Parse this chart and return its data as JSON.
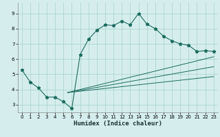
{
  "xlabel": "Humidex (Indice chaleur)",
  "background_color": "#d5eeed",
  "line_color": "#1a6b5e",
  "grid_color": "#b2d8d4",
  "xlim": [
    -0.5,
    23.5
  ],
  "ylim": [
    2.5,
    9.7
  ],
  "xticks": [
    0,
    1,
    2,
    3,
    4,
    5,
    6,
    7,
    8,
    9,
    10,
    11,
    12,
    13,
    14,
    15,
    16,
    17,
    18,
    19,
    20,
    21,
    22,
    23
  ],
  "yticks": [
    3,
    4,
    5,
    6,
    7,
    8,
    9
  ],
  "main_x": [
    0,
    1,
    2,
    3,
    4,
    5,
    6,
    7,
    8,
    9,
    10,
    11,
    12,
    13,
    14,
    15,
    16,
    17,
    18,
    19,
    20,
    21,
    22,
    23
  ],
  "main_y": [
    5.3,
    4.5,
    4.1,
    3.5,
    3.5,
    3.2,
    2.75,
    6.3,
    7.3,
    7.9,
    8.25,
    8.2,
    8.5,
    8.25,
    9.0,
    8.3,
    8.0,
    7.5,
    7.2,
    7.0,
    6.9,
    6.5,
    6.55,
    6.5
  ],
  "line1_x": [
    5.5,
    23
  ],
  "line1_y": [
    3.8,
    6.15
  ],
  "line2_x": [
    5.5,
    23
  ],
  "line2_y": [
    3.8,
    5.5
  ],
  "line3_x": [
    5.5,
    23
  ],
  "line3_y": [
    3.8,
    4.85
  ],
  "marker": "*",
  "markersize": 3.5
}
